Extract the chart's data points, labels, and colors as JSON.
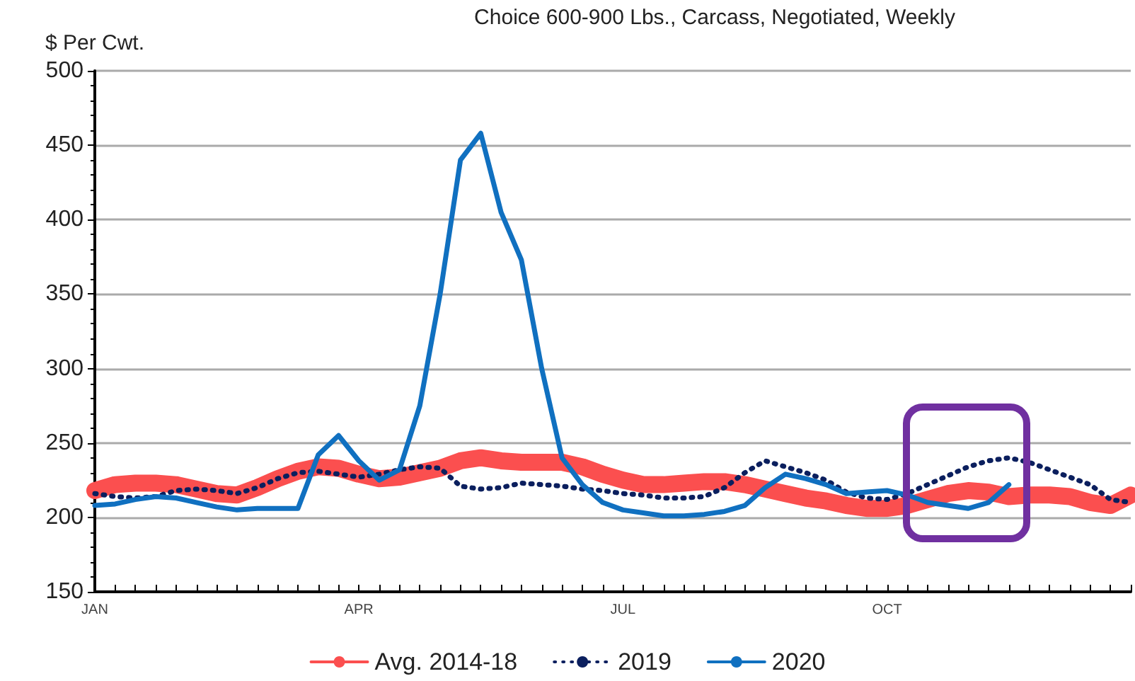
{
  "chart_data": {
    "type": "line",
    "title": "Choice 600-900 Lbs., Carcass, Negotiated, Weekly",
    "ylabel": "$ Per Cwt.",
    "categories": [
      "JAN",
      null,
      null,
      null,
      null,
      null,
      null,
      null,
      null,
      null,
      null,
      null,
      null,
      "APR",
      null,
      null,
      null,
      null,
      null,
      null,
      null,
      null,
      null,
      null,
      null,
      null,
      "JUL",
      null,
      null,
      null,
      null,
      null,
      null,
      null,
      null,
      null,
      null,
      null,
      null,
      "OCT",
      null,
      null,
      null,
      null,
      null,
      null,
      null,
      null,
      null,
      null,
      null,
      null
    ],
    "series": [
      {
        "name": "Avg. 2014-18",
        "color": "#fb4f4f",
        "line_style": "solid",
        "values": [
          218,
          222,
          223,
          223,
          222,
          219,
          216,
          215,
          220,
          226,
          231,
          234,
          233,
          229,
          226,
          227,
          230,
          233,
          238,
          240,
          238,
          237,
          237,
          237,
          234,
          229,
          225,
          222,
          222,
          223,
          224,
          224,
          222,
          219,
          216,
          213,
          211,
          208,
          206,
          206,
          208,
          212,
          216,
          218,
          217,
          214,
          215,
          215,
          214,
          210,
          208,
          215
        ]
      },
      {
        "name": "2019",
        "color": "#0b1f5e",
        "line_style": "dotted",
        "values": [
          216,
          214,
          213,
          214,
          218,
          219,
          218,
          216,
          220,
          226,
          230,
          231,
          229,
          227,
          229,
          232,
          234,
          233,
          221,
          219,
          220,
          223,
          222,
          221,
          219,
          218,
          216,
          215,
          213,
          213,
          214,
          220,
          230,
          238,
          234,
          230,
          225,
          217,
          213,
          212,
          216,
          222,
          228,
          234,
          238,
          240,
          237,
          232,
          227,
          222,
          212,
          210
        ]
      },
      {
        "name": "2020",
        "color": "#1070c0",
        "line_style": "solid",
        "values": [
          208,
          209,
          212,
          214,
          213,
          210,
          207,
          205,
          206,
          206,
          206,
          242,
          255,
          238,
          225,
          232,
          275,
          350,
          440,
          458,
          405,
          373,
          300,
          240,
          222,
          210,
          205,
          203,
          201,
          201,
          202,
          204,
          208,
          220,
          229,
          226,
          222,
          216,
          217,
          218,
          215,
          210,
          208,
          206,
          210,
          222,
          null,
          null,
          null,
          null,
          null,
          null
        ]
      }
    ],
    "ylim": [
      150,
      500
    ],
    "yticks": [
      150,
      200,
      250,
      300,
      350,
      400,
      450,
      500
    ],
    "grid": "y",
    "legend": "bottom"
  }
}
